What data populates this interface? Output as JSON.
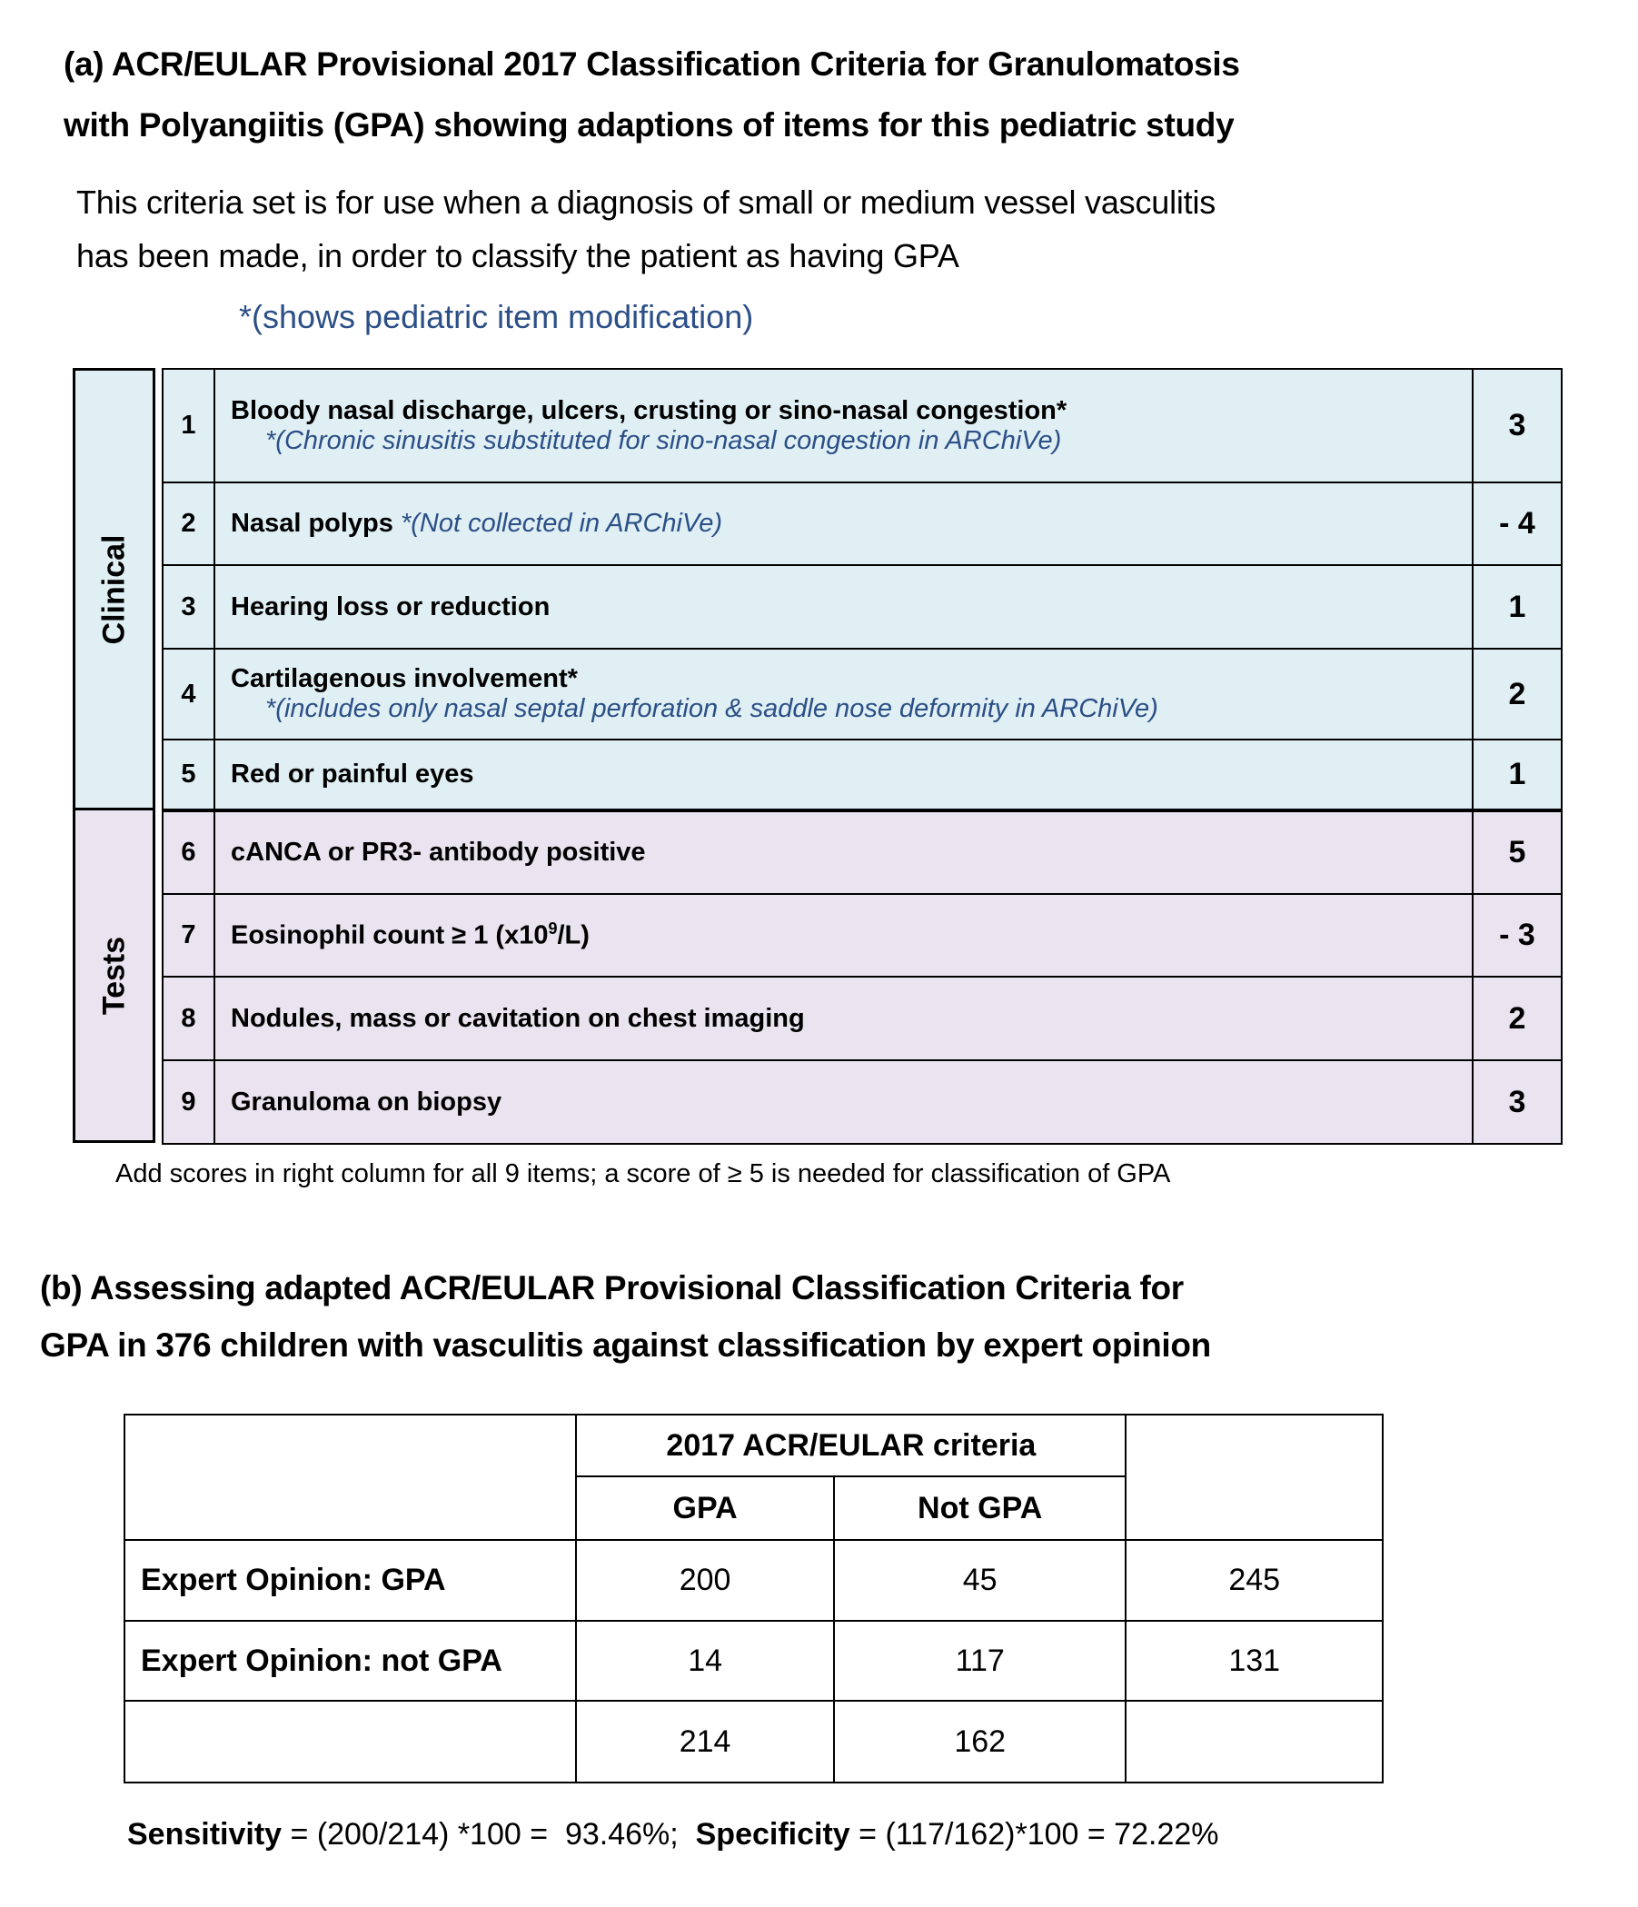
{
  "part_a": {
    "title_line1": "(a) ACR/EULAR Provisional 2017 Classification Criteria for Granulomatosis",
    "title_line2": "with Polyangiitis (GPA) showing adaptions of  items for this pediatric study",
    "desc_line1": "This criteria set is for use when a diagnosis of small or medium vessel vasculitis",
    "desc_line2": "has been made, in order to classify the patient as having GPA",
    "modification_note": "*(shows pediatric item modification)",
    "groups": [
      "Clinical",
      "Tests"
    ],
    "items": [
      {
        "num": "1",
        "text": "Bloody nasal discharge, ulcers, crusting or sino-nasal congestion*",
        "note": "*(Chronic sinusitis substituted for sino-nasal congestion in ARChiVe)",
        "score": "3"
      },
      {
        "num": "2",
        "text": "Nasal polyps",
        "note": "*(Not collected in ARChiVe)",
        "score": "- 4"
      },
      {
        "num": "3",
        "text": "Hearing loss or reduction",
        "score": "1"
      },
      {
        "num": "4",
        "text": "Cartilagenous involvement*",
        "note": "*(includes only nasal septal perforation & saddle nose deformity in ARChiVe)",
        "score": "2"
      },
      {
        "num": "5",
        "text": "Red or painful eyes",
        "score": "1"
      },
      {
        "num": "6",
        "text": "cANCA or PR3- antibody positive",
        "score": "5"
      },
      {
        "num": "7",
        "text_pre": "Eosinophil count ≥ 1 (x10",
        "sup": "9",
        "text_post": "/L)",
        "score": "- 3"
      },
      {
        "num": "8",
        "text": "Nodules, mass or cavitation on chest imaging",
        "score": "2"
      },
      {
        "num": "9",
        "text": "Granuloma on biopsy",
        "score": "3"
      }
    ],
    "footnote": "Add scores  in right column for all 9 items; a score of ≥ 5 is needed for classification of GPA",
    "colors": {
      "clinical_bg": "#DFEFF4",
      "tests_bg": "#E9E4EF",
      "note_text": "#2B4F86"
    }
  },
  "part_b": {
    "title_line1": "(b) Assessing adapted ACR/EULAR Provisional Classification Criteria for",
    "title_line2": "GPA in 376 children with vasculitis against classification by expert opinion",
    "header": "2017 ACR/EULAR criteria",
    "col_headers": [
      "GPA",
      "Not GPA"
    ],
    "rows": [
      {
        "label": "Expert Opinion: GPA",
        "values": [
          "200",
          "45",
          "245"
        ]
      },
      {
        "label": "Expert Opinion: not GPA",
        "values": [
          "14",
          "117",
          "131"
        ]
      },
      {
        "label": "",
        "values": [
          "214",
          "162",
          ""
        ]
      }
    ],
    "sensitivity_label": "Sensitivity",
    "sensitivity_formula": " = (200/214) *100 =  93.46%;  ",
    "specificity_label": "Specificity",
    "specificity_formula": " = (117/162)*100 = 72.22%"
  }
}
